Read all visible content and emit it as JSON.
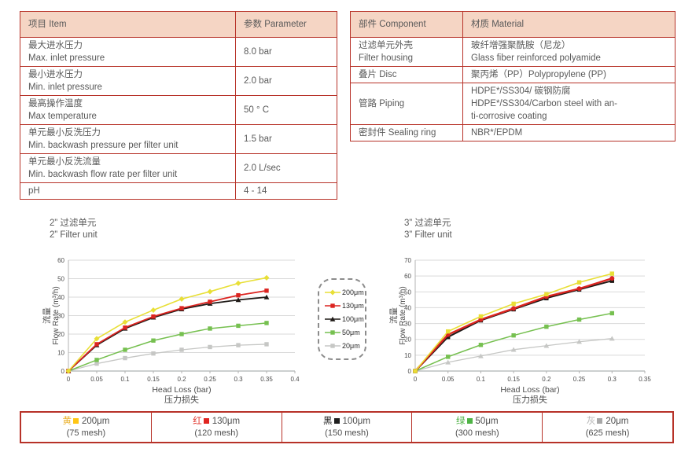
{
  "colors": {
    "table_border": "#b73228",
    "header_bg": "#f5d5c4",
    "text": "#595959",
    "grid": "#d9d9d9",
    "axis": "#b3b3b3"
  },
  "spec_table": {
    "headers": {
      "item": "项目 Item",
      "parameter": "参数 Parameter"
    },
    "rows": [
      {
        "cn": "最大进水压力",
        "en": "Max. inlet pressure",
        "value": "8.0 bar"
      },
      {
        "cn": "最小进水压力",
        "en": "Min. inlet pressure",
        "value": "2.0 bar"
      },
      {
        "cn": "最高操作温度",
        "en": "Max temperature",
        "value": "50 ° C"
      },
      {
        "cn": "单元最小反洗压力",
        "en": "Min. backwash pressure per filter unit",
        "value": "1.5 bar"
      },
      {
        "cn": "单元最小反洗流量",
        "en": "Min. backwash flow rate per filter unit",
        "value": "2.0 L/sec"
      },
      {
        "cn": "pH",
        "value": "4 - 14"
      }
    ]
  },
  "material_table": {
    "headers": {
      "component": "部件 Component",
      "material": "材质 Material"
    },
    "rows": [
      {
        "component_lines": [
          "过滤单元外壳",
          "Filter housing"
        ],
        "material_lines": [
          "玻纤增强聚酰胺（尼龙）",
          "Glass fiber reinforced polyamide"
        ]
      },
      {
        "component_lines": [
          "叠片 Disc"
        ],
        "material_lines": [
          "聚丙烯（PP）Polypropylene (PP)"
        ]
      },
      {
        "component_lines": [
          "管路 Piping"
        ],
        "material_lines": [
          "HDPE*/SS304/ 碳钢防腐",
          "HDPE*/SS304/Carbon steel with an-",
          "ti-corrosive coating"
        ]
      },
      {
        "component_lines": [
          "密封件 Sealing ring"
        ],
        "material_lines": [
          "NBR*/EPDM"
        ]
      }
    ]
  },
  "chart_data": [
    {
      "type": "line",
      "title_cn": "2”  过滤单元",
      "title_en": "2”  Filter unit",
      "ylabel_cn": "流量",
      "ylabel_en": "Flow Rate (m³/h)",
      "xlabel_en": "Head Loss (bar)",
      "xlabel_cn": "压力损失",
      "xlim": [
        0,
        0.4
      ],
      "ylim": [
        0,
        60
      ],
      "xticks": [
        0,
        0.05,
        0.1,
        0.15,
        0.2,
        0.25,
        0.3,
        0.35,
        0.4
      ],
      "xtick_labels": [
        "0",
        "0.05",
        "0.1",
        "0.15",
        "0.2",
        "0.25",
        "0.3",
        "0.35",
        "0.4"
      ],
      "yticks": [
        0,
        10,
        20,
        30,
        40,
        50,
        60
      ],
      "grid": "horizontal",
      "x": [
        0,
        0.05,
        0.1,
        0.15,
        0.2,
        0.25,
        0.3,
        0.35
      ],
      "series": [
        {
          "name": "200μm",
          "color": "#e8df36",
          "marker": "diamond",
          "line_width": 1.6,
          "values": [
            0,
            17.5,
            26.5,
            33,
            39,
            43,
            47.5,
            50.5
          ]
        },
        {
          "name": "130μm",
          "color": "#dc2420",
          "marker": "square",
          "line_width": 1.8,
          "values": [
            0,
            14.5,
            23.5,
            29.5,
            34,
            37.5,
            41,
            43.5
          ]
        },
        {
          "name": "100μm",
          "color": "#1f1a17",
          "marker": "triangle",
          "line_width": 1.8,
          "values": [
            0,
            14,
            23,
            29,
            33.5,
            36.5,
            38.5,
            40
          ]
        },
        {
          "name": "50μm",
          "color": "#76c050",
          "marker": "square",
          "line_width": 1.5,
          "values": [
            0,
            6,
            11.5,
            16.5,
            20,
            23,
            24.5,
            26
          ]
        },
        {
          "name": "20μm",
          "color": "#c6c7c5",
          "marker": "square",
          "line_width": 1.3,
          "values": [
            0,
            4,
            7,
            9.5,
            11.5,
            13,
            14,
            14.5
          ]
        }
      ]
    },
    {
      "type": "line",
      "title_cn": "3”  过滤单元",
      "title_en": "3”  Filter unit",
      "ylabel_cn": "流量",
      "ylabel_en": "Flow Rate (m³/h)",
      "xlabel_en": "Head Loss (bar)",
      "xlabel_cn": "压力损失",
      "xlim": [
        0,
        0.35
      ],
      "ylim": [
        0,
        70
      ],
      "xticks": [
        0,
        0.05,
        0.1,
        0.15,
        0.2,
        0.25,
        0.3,
        0.35
      ],
      "xtick_labels": [
        "0",
        "0.05",
        "0.1",
        "0.15",
        "0.2",
        "0.25",
        "0.3",
        "0.35"
      ],
      "yticks": [
        0,
        10,
        20,
        30,
        40,
        50,
        60,
        70
      ],
      "grid": "horizontal",
      "x": [
        0,
        0.05,
        0.1,
        0.15,
        0.2,
        0.25,
        0.3
      ],
      "series": [
        {
          "name": "200μm",
          "color": "#e8df36",
          "marker": "square",
          "line_width": 1.6,
          "values": [
            0,
            25,
            34.5,
            42.5,
            48.5,
            56,
            61.5
          ]
        },
        {
          "name": "130μm",
          "color": "#dc2420",
          "marker": "circle",
          "line_width": 2.4,
          "values": [
            0,
            23,
            32.5,
            39.5,
            47,
            52,
            58.5
          ]
        },
        {
          "name": "100μm",
          "color": "#1f1a17",
          "marker": "square",
          "line_width": 2.0,
          "values": [
            0,
            21.5,
            32,
            39,
            46,
            51.5,
            57
          ]
        },
        {
          "name": "50μm",
          "color": "#76c050",
          "marker": "square",
          "line_width": 1.5,
          "values": [
            0,
            9,
            16.5,
            22.5,
            28,
            32.5,
            36.5
          ]
        },
        {
          "name": "20μm",
          "color": "#c6c7c5",
          "marker": "triangle",
          "line_width": 1.3,
          "values": [
            0,
            5.5,
            9.5,
            13.5,
            16,
            18.5,
            20.5
          ]
        }
      ]
    }
  ],
  "chart_legend": {
    "items": [
      {
        "label": "200μm",
        "color": "#e8df36",
        "marker": "diamond"
      },
      {
        "label": "130μm",
        "color": "#dc2420",
        "marker": "square"
      },
      {
        "label": "100μm",
        "color": "#1f1a17",
        "marker": "triangle"
      },
      {
        "label": "50μm",
        "color": "#76c050",
        "marker": "square"
      },
      {
        "label": "20μm",
        "color": "#c6c7c5",
        "marker": "square"
      }
    ]
  },
  "mesh_legend": {
    "cells": [
      {
        "color_char": "黄",
        "char_color": "#eab12c",
        "swatch_color": "#ffc615",
        "size": "200μm",
        "mesh": "(75 mesh)"
      },
      {
        "color_char": "红",
        "char_color": "#e0332a",
        "swatch_color": "#e02420",
        "size": "130μm",
        "mesh": "(120 mesh)"
      },
      {
        "color_char": "黑",
        "char_color": "#1f1f1f",
        "swatch_color": "#1f1f1f",
        "size": "100μm",
        "mesh": "(150 mesh)"
      },
      {
        "color_char": "绿",
        "char_color": "#4eb345",
        "swatch_color": "#4eb345",
        "size": "50μm",
        "mesh": "(300 mesh)"
      },
      {
        "color_char": "灰",
        "char_color": "#b5b5b5",
        "swatch_color": "#a8a8a8",
        "size": "20μm",
        "mesh": "(625 mesh)"
      }
    ]
  }
}
